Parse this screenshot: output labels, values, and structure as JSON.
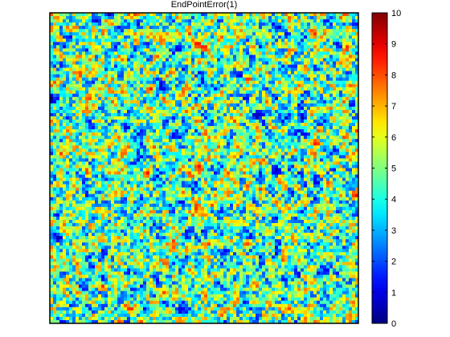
{
  "chart_data": {
    "type": "heatmap",
    "title": "EndPointError(1)",
    "xlabel": "",
    "ylabel": "",
    "grid": false,
    "axis_ticks_visible": false,
    "grid_size": [
      96,
      96
    ],
    "value_range": [
      0,
      10
    ],
    "colormap": "jet",
    "colorbar": {
      "position": "right",
      "ticks": [
        0,
        1,
        2,
        3,
        4,
        5,
        6,
        7,
        8,
        9,
        10
      ],
      "tick_labels": [
        "0",
        "1",
        "2",
        "3",
        "4",
        "5",
        "6",
        "7",
        "8",
        "9",
        "10"
      ]
    },
    "value_distribution": {
      "most_common_range": [
        3,
        6
      ],
      "occasional_low": [
        0,
        2
      ],
      "occasional_high": [
        7,
        9.5
      ]
    }
  }
}
